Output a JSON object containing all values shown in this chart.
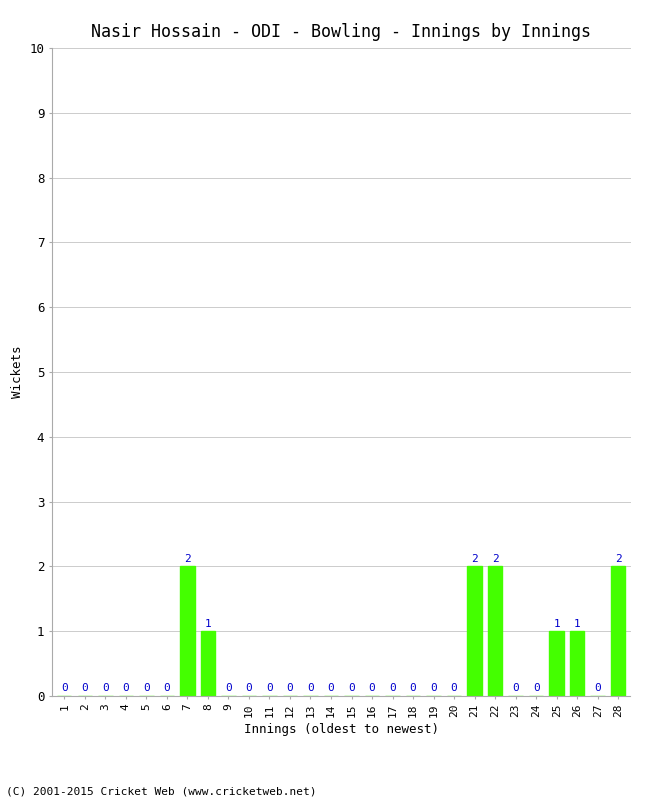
{
  "title": "Nasir Hossain - ODI - Bowling - Innings by Innings",
  "xlabel": "Innings (oldest to newest)",
  "ylabel": "Wickets",
  "categories": [
    "1",
    "2",
    "3",
    "4",
    "5",
    "6",
    "7",
    "8",
    "9",
    "10",
    "11",
    "12",
    "13",
    "14",
    "15",
    "16",
    "17",
    "18",
    "19",
    "20",
    "21",
    "22",
    "23",
    "24",
    "25",
    "26",
    "27",
    "28"
  ],
  "values": [
    0,
    0,
    0,
    0,
    0,
    0,
    2,
    1,
    0,
    0,
    0,
    0,
    0,
    0,
    0,
    0,
    0,
    0,
    0,
    0,
    2,
    2,
    0,
    0,
    1,
    1,
    0,
    2
  ],
  "bar_color": "#44ff00",
  "label_color": "#0000cc",
  "ylim": [
    0,
    10
  ],
  "yticks": [
    0,
    1,
    2,
    3,
    4,
    5,
    6,
    7,
    8,
    9,
    10
  ],
  "background_color": "#ffffff",
  "footer": "(C) 2001-2015 Cricket Web (www.cricketweb.net)",
  "title_fontsize": 12,
  "label_fontsize": 9,
  "tick_fontsize": 8,
  "footer_fontsize": 8,
  "bar_label_fontsize": 8
}
